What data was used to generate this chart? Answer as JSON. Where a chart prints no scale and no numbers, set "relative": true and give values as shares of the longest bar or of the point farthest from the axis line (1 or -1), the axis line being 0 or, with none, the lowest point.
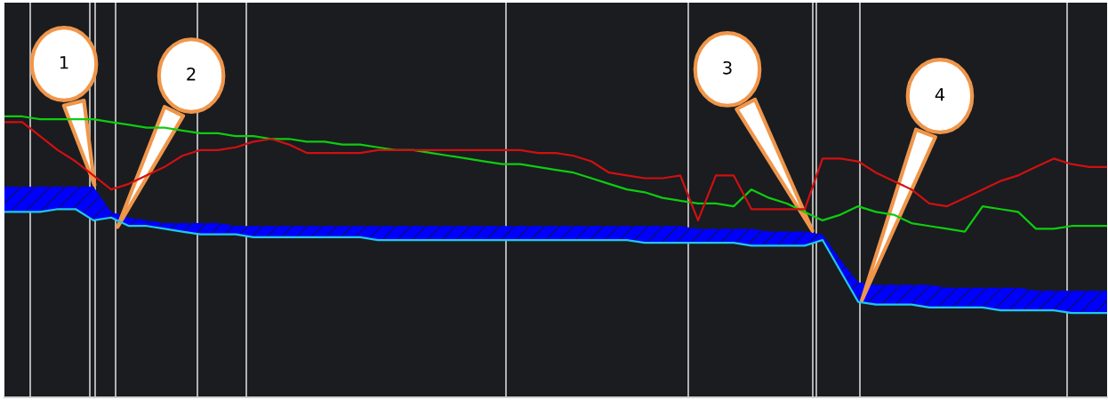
{
  "chart_data": {
    "type": "line",
    "relative": true,
    "grid": "x",
    "marker": "none",
    "line_style": "solid",
    "categories": [
      null,
      null,
      null,
      null,
      null,
      null,
      null,
      null,
      null,
      null,
      null,
      null,
      null,
      null,
      null,
      null,
      null,
      null,
      null,
      null,
      null,
      null,
      null,
      null,
      null,
      null,
      null,
      null,
      null,
      null,
      null,
      null,
      null,
      null,
      null,
      null,
      null,
      null,
      null,
      null,
      null,
      null,
      null,
      null,
      null,
      null,
      null,
      null,
      null,
      null,
      null,
      null,
      null,
      null,
      null,
      null,
      null,
      null,
      null,
      null,
      null,
      null,
      null
    ],
    "series": [
      {
        "color": "#0fcc0f",
        "values": [
          1.0,
          1.0,
          0.99,
          0.99,
          0.99,
          0.99,
          0.98,
          0.97,
          0.96,
          0.96,
          0.95,
          0.94,
          0.94,
          0.93,
          0.93,
          0.92,
          0.92,
          0.91,
          0.91,
          0.9,
          0.9,
          0.89,
          0.88,
          0.88,
          0.87,
          0.86,
          0.85,
          0.84,
          0.83,
          0.83,
          0.82,
          0.81,
          0.8,
          0.78,
          0.76,
          0.74,
          0.73,
          0.71,
          0.7,
          0.69,
          0.69,
          0.68,
          0.74,
          0.71,
          0.69,
          0.66,
          0.63,
          0.65,
          0.68,
          0.66,
          0.65,
          0.62,
          0.61,
          0.6,
          0.59,
          0.68,
          0.67,
          0.66,
          0.6,
          0.6,
          0.61,
          0.61,
          0.61
        ]
      },
      {
        "color": "#d01010",
        "values": [
          0.98,
          0.98,
          0.93,
          0.88,
          0.84,
          0.79,
          0.74,
          0.76,
          0.79,
          0.82,
          0.86,
          0.88,
          0.88,
          0.89,
          0.91,
          0.92,
          0.9,
          0.87,
          0.87,
          0.87,
          0.87,
          0.88,
          0.88,
          0.88,
          0.88,
          0.88,
          0.88,
          0.88,
          0.88,
          0.88,
          0.87,
          0.87,
          0.86,
          0.84,
          0.8,
          0.79,
          0.78,
          0.78,
          0.79,
          0.63,
          0.79,
          0.79,
          0.67,
          0.67,
          0.67,
          0.67,
          0.85,
          0.85,
          0.84,
          0.8,
          0.77,
          0.74,
          0.69,
          0.68,
          0.71,
          0.74,
          0.77,
          0.79,
          0.82,
          0.85,
          0.83,
          0.82,
          0.82
        ]
      },
      {
        "color": "#20c8e8",
        "values": [
          0.66,
          0.66,
          0.66,
          0.67,
          0.67,
          0.63,
          0.64,
          0.61,
          0.61,
          0.6,
          0.59,
          0.58,
          0.58,
          0.58,
          0.57,
          0.57,
          0.57,
          0.57,
          0.57,
          0.57,
          0.57,
          0.56,
          0.56,
          0.56,
          0.56,
          0.56,
          0.56,
          0.56,
          0.56,
          0.56,
          0.56,
          0.56,
          0.56,
          0.56,
          0.56,
          0.56,
          0.55,
          0.55,
          0.55,
          0.55,
          0.55,
          0.55,
          0.54,
          0.54,
          0.54,
          0.54,
          0.56,
          0.45,
          0.34,
          0.33,
          0.33,
          0.33,
          0.32,
          0.32,
          0.32,
          0.32,
          0.31,
          0.31,
          0.31,
          0.31,
          0.3,
          0.3,
          0.3
        ],
        "lower": [
          0.66,
          0.66,
          0.66,
          0.67,
          0.67,
          0.63,
          0.64,
          0.61,
          0.61,
          0.6,
          0.59,
          0.58,
          0.58,
          0.58,
          0.57,
          0.57,
          0.57,
          0.57,
          0.57,
          0.57,
          0.57,
          0.56,
          0.56,
          0.56,
          0.56,
          0.56,
          0.56,
          0.56,
          0.56,
          0.56,
          0.56,
          0.56,
          0.56,
          0.56,
          0.56,
          0.56,
          0.55,
          0.55,
          0.55,
          0.55,
          0.55,
          0.55,
          0.54,
          0.54,
          0.54,
          0.54,
          0.56,
          0.45,
          0.34,
          0.33,
          0.33,
          0.33,
          0.32,
          0.32,
          0.32,
          0.32,
          0.31,
          0.31,
          0.31,
          0.31,
          0.3,
          0.3,
          0.3
        ],
        "upper": [
          0.75,
          0.75,
          0.75,
          0.75,
          0.75,
          0.75,
          0.66,
          0.64,
          0.63,
          0.62,
          0.62,
          0.62,
          0.62,
          0.61,
          0.61,
          0.61,
          0.61,
          0.61,
          0.61,
          0.61,
          0.61,
          0.61,
          0.61,
          0.61,
          0.61,
          0.61,
          0.61,
          0.61,
          0.61,
          0.61,
          0.61,
          0.61,
          0.61,
          0.61,
          0.61,
          0.61,
          0.61,
          0.61,
          0.61,
          0.6,
          0.6,
          0.6,
          0.6,
          0.59,
          0.59,
          0.59,
          0.58,
          0.49,
          0.41,
          0.4,
          0.4,
          0.4,
          0.4,
          0.39,
          0.39,
          0.39,
          0.39,
          0.39,
          0.38,
          0.38,
          0.38,
          0.38,
          0.38
        ]
      }
    ],
    "annotations": [
      "1",
      "2",
      "3",
      "4"
    ]
  }
}
